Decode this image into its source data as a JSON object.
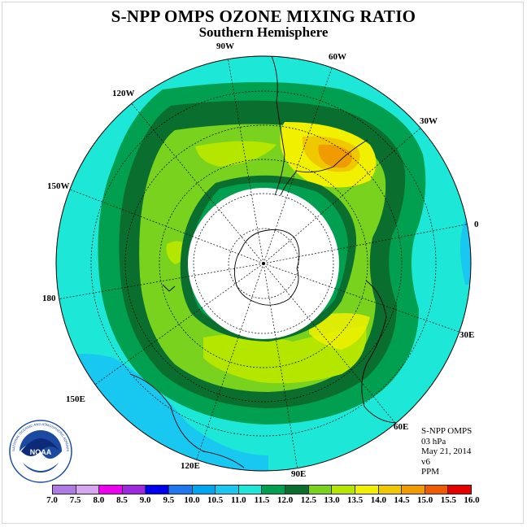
{
  "title": "S-NPP OMPS OZONE MIXING RATIO",
  "subtitle": "Southern Hemisphere",
  "longitude_labels": [
    "90W",
    "60W",
    "30W",
    "0",
    "30E",
    "60E",
    "90E",
    "120E",
    "150E",
    "180",
    "150W",
    "120W"
  ],
  "info": {
    "instrument": "S-NPP OMPS",
    "level": "03 hPa",
    "date": "May 21, 2014",
    "version": "v6",
    "units": "PPM"
  },
  "logo_text": "NOAA",
  "logo_ring_text": "NATIONAL OCEANIC AND ATMOSPHERIC ADMINISTRATION · U.S. DEPARTMENT OF COMMERCE",
  "colorbar": {
    "labels": [
      "7.0",
      "7.5",
      "8.0",
      "8.5",
      "9.0",
      "9.5",
      "10.0",
      "10.5",
      "11.0",
      "11.5",
      "12.0",
      "12.5",
      "13.0",
      "13.5",
      "14.0",
      "14.5",
      "15.0",
      "15.5",
      "16.0"
    ],
    "colors": [
      "#b07ae6",
      "#d6a6f0",
      "#f000f0",
      "#9c28e0",
      "#0000f0",
      "#1f78f0",
      "#00a6f0",
      "#18c8f0",
      "#1de8d8",
      "#00a050",
      "#0a6e2e",
      "#78d21e",
      "#b4e600",
      "#f0f000",
      "#f0c800",
      "#f09b00",
      "#f05a00",
      "#e60000",
      "#8c5a3c"
    ]
  }
}
